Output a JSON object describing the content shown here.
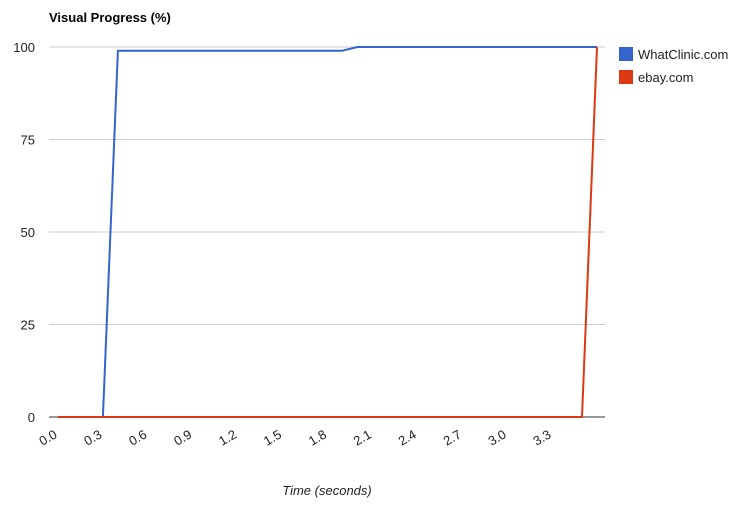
{
  "chart_data": {
    "type": "line",
    "title": "Visual Progress (%)",
    "xlabel": "Time (seconds)",
    "ylabel": "",
    "xlim": [
      0.0,
      3.6
    ],
    "ylim": [
      0,
      100
    ],
    "x_ticks": [
      "0.0",
      "0.3",
      "0.6",
      "0.9",
      "1.2",
      "1.5",
      "1.8",
      "2.1",
      "2.4",
      "2.7",
      "3.0",
      "3.3"
    ],
    "y_ticks": [
      "0",
      "25",
      "50",
      "75",
      "100"
    ],
    "grid": true,
    "legend_position": "right",
    "series": [
      {
        "name": "WhatClinic.com",
        "color": "#3366cc",
        "points": [
          {
            "x": 0.0,
            "y": 0
          },
          {
            "x": 0.3,
            "y": 0
          },
          {
            "x": 0.4,
            "y": 99
          },
          {
            "x": 1.9,
            "y": 99
          },
          {
            "x": 2.0,
            "y": 100
          },
          {
            "x": 3.6,
            "y": 100
          }
        ]
      },
      {
        "name": "ebay.com",
        "color": "#dc3912",
        "points": [
          {
            "x": 0.0,
            "y": 0
          },
          {
            "x": 3.5,
            "y": 0
          },
          {
            "x": 3.6,
            "y": 100
          }
        ]
      }
    ]
  }
}
